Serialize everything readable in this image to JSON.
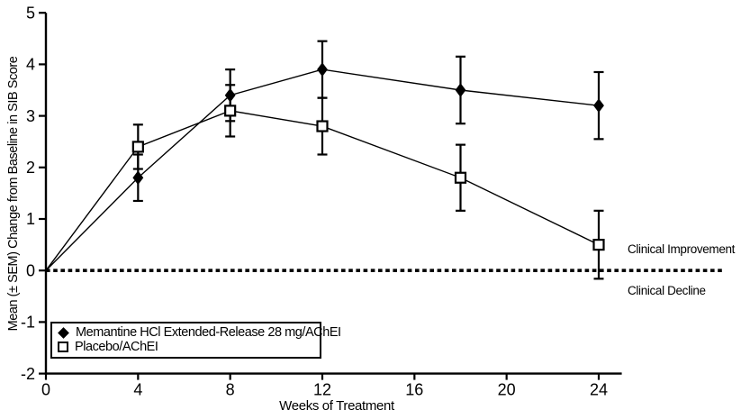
{
  "figure": {
    "background": "#ffffff",
    "ink_color": "#000000"
  },
  "chart_data": {
    "type": "line",
    "title": "",
    "xlabel": "Weeks of Treatment",
    "ylabel": "Mean (± SEM) Change from Baseline in SIB Score",
    "xlim": [
      0,
      25
    ],
    "ylim": [
      -2,
      5
    ],
    "x_ticks": [
      0,
      4,
      8,
      12,
      16,
      20,
      24
    ],
    "y_ticks": [
      5,
      4,
      3,
      2,
      1,
      0,
      -1,
      -2
    ],
    "grid": "off",
    "legend_position": "inside-bottom-left",
    "x": [
      0,
      4,
      8,
      12,
      18,
      24
    ],
    "series": [
      {
        "name": "Memantine HCl Extended-Release 28 mg/AChEI",
        "marker": "filled-diamond",
        "values": [
          0,
          1.8,
          3.4,
          3.9,
          3.5,
          3.2
        ],
        "sem": [
          0,
          0.45,
          0.5,
          0.55,
          0.65,
          0.65
        ]
      },
      {
        "name": "Placebo/AChEI",
        "marker": "open-square",
        "values": [
          0,
          2.4,
          3.1,
          2.8,
          1.8,
          0.5
        ],
        "sem": [
          0,
          0.43,
          0.5,
          0.55,
          0.64,
          0.66
        ]
      }
    ],
    "baseline": {
      "value": 0,
      "style": "dashed",
      "label_above": "Clinical Improvement",
      "label_below": "Clinical Decline"
    }
  }
}
